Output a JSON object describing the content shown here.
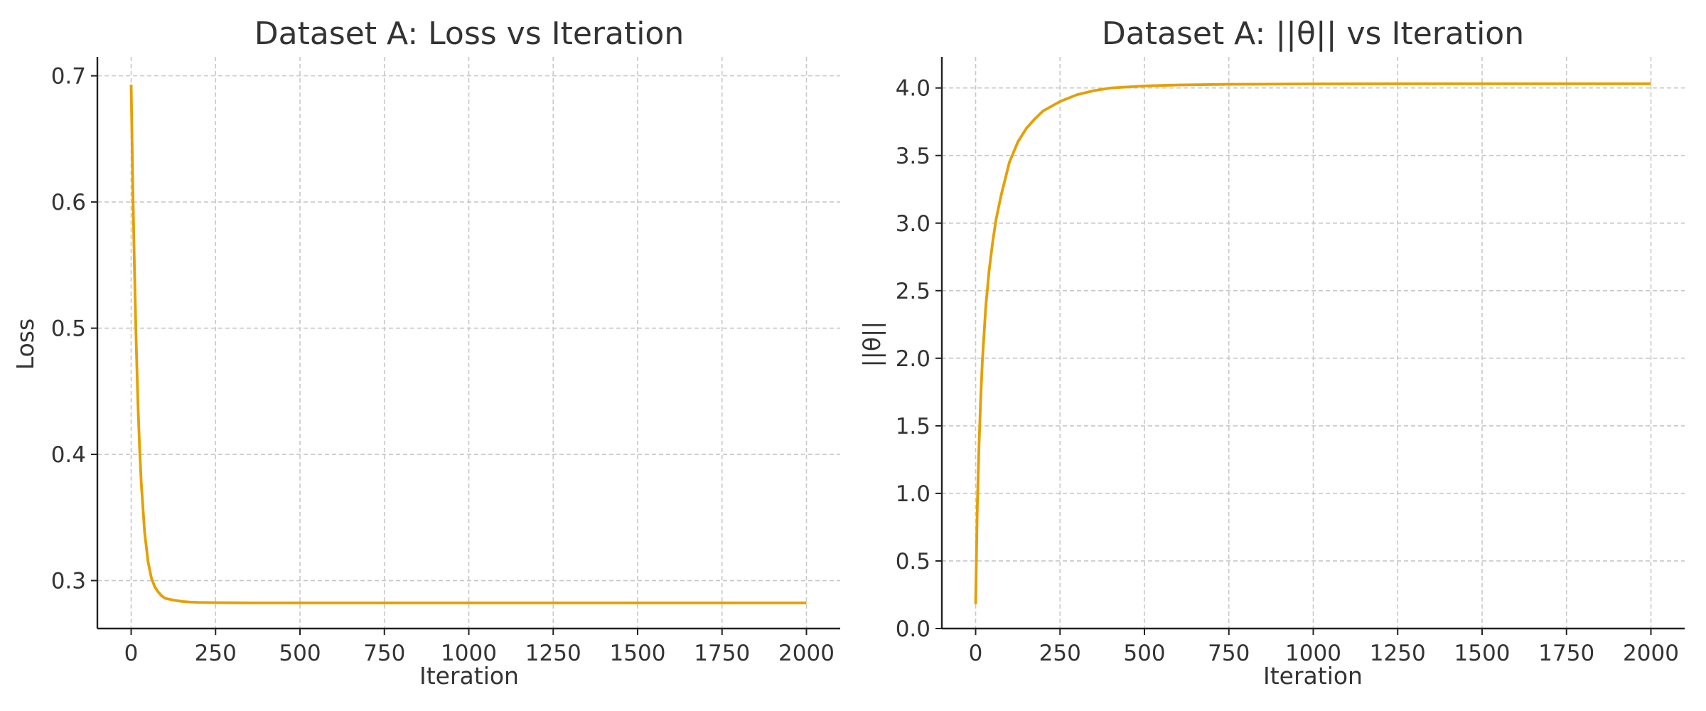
{
  "chart_data": [
    {
      "type": "line",
      "title": "Dataset A: Loss vs Iteration",
      "xlabel": "Iteration",
      "ylabel": "Loss",
      "xlim": [
        -100,
        2100
      ],
      "ylim": [
        0.262,
        0.715
      ],
      "xticks": [
        0,
        250,
        500,
        750,
        1000,
        1250,
        1500,
        1750,
        2000
      ],
      "yticks": [
        0.3,
        0.4,
        0.5,
        0.6,
        0.7
      ],
      "xtick_labels": [
        "0",
        "250",
        "500",
        "750",
        "1000",
        "1250",
        "1500",
        "1750",
        "2000"
      ],
      "ytick_labels": [
        "0.3",
        "0.4",
        "0.5",
        "0.6",
        "0.7"
      ],
      "grid": true,
      "color": "#E69F00",
      "series": [
        {
          "x": [
            0,
            5,
            10,
            15,
            20,
            25,
            30,
            40,
            50,
            60,
            70,
            80,
            90,
            100,
            125,
            150,
            175,
            200,
            250,
            300,
            350,
            400,
            500,
            750,
            1000,
            1250,
            1500,
            1750,
            2000
          ],
          "values": [
            0.693,
            0.61,
            0.545,
            0.488,
            0.441,
            0.405,
            0.377,
            0.338,
            0.315,
            0.302,
            0.295,
            0.291,
            0.288,
            0.286,
            0.2845,
            0.2835,
            0.283,
            0.2827,
            0.2825,
            0.2824,
            0.2823,
            0.2823,
            0.2823,
            0.2823,
            0.2823,
            0.2823,
            0.2823,
            0.2823,
            0.2823
          ]
        }
      ]
    },
    {
      "type": "line",
      "title": "Dataset A: ||θ|| vs Iteration",
      "xlabel": "Iteration",
      "ylabel": "||θ||",
      "xlim": [
        -100,
        2100
      ],
      "ylim": [
        0,
        4.23
      ],
      "xticks": [
        0,
        250,
        500,
        750,
        1000,
        1250,
        1500,
        1750,
        2000
      ],
      "yticks": [
        0.0,
        0.5,
        1.0,
        1.5,
        2.0,
        2.5,
        3.0,
        3.5,
        4.0
      ],
      "xtick_labels": [
        "0",
        "250",
        "500",
        "750",
        "1000",
        "1250",
        "1500",
        "1750",
        "2000"
      ],
      "ytick_labels": [
        "0.0",
        "0.5",
        "1.0",
        "1.5",
        "2.0",
        "2.5",
        "3.0",
        "3.5",
        "4.0"
      ],
      "grid": true,
      "color": "#E69F00",
      "series": [
        {
          "x": [
            0,
            5,
            10,
            15,
            20,
            30,
            40,
            50,
            60,
            75,
            100,
            125,
            150,
            175,
            200,
            250,
            300,
            350,
            400,
            500,
            600,
            750,
            1000,
            1250,
            1500,
            1750,
            2000
          ],
          "values": [
            0.18,
            0.9,
            1.35,
            1.7,
            1.98,
            2.38,
            2.65,
            2.85,
            3.02,
            3.2,
            3.45,
            3.6,
            3.7,
            3.77,
            3.83,
            3.9,
            3.95,
            3.98,
            4.0,
            4.015,
            4.022,
            4.027,
            4.03,
            4.031,
            4.031,
            4.031,
            4.031
          ]
        }
      ]
    }
  ]
}
